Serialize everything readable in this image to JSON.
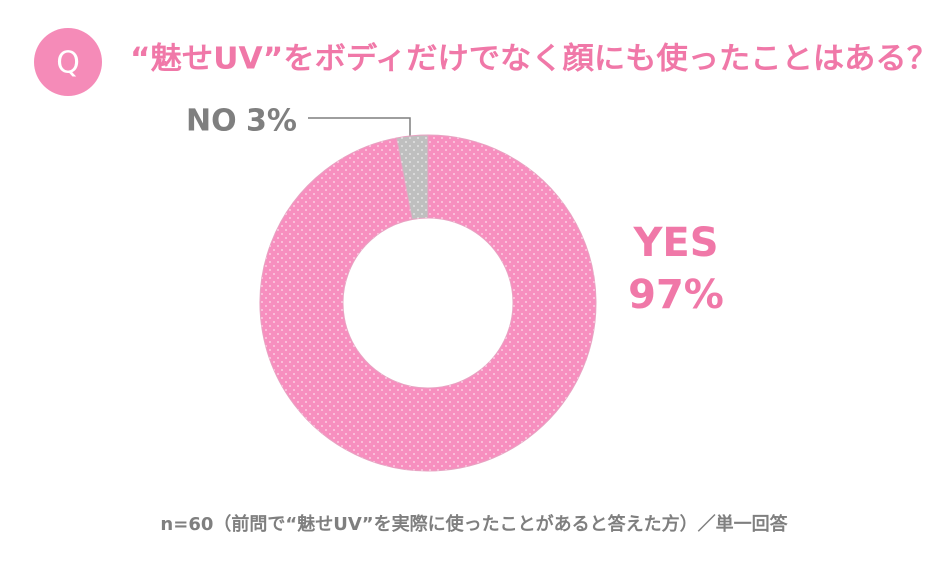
{
  "chart_data": {
    "type": "pie",
    "badge": "Q",
    "title": "“魅せUV”をボディだけでなく顔にも使ったことはある？",
    "categories": [
      "YES",
      "NO"
    ],
    "values": [
      97,
      3
    ],
    "value_labels": [
      "97%",
      "3%"
    ],
    "colors": [
      "#f78fbf",
      "#bfbfbf"
    ],
    "donut": true,
    "note": "n=60（前問で“魅せUV”を実際に使ったことがあると答えた方）／単一回答"
  }
}
